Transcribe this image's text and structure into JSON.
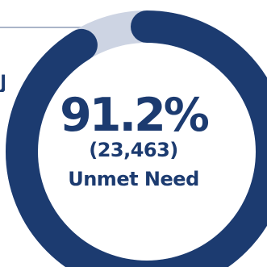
{
  "chart_data": {
    "type": "donut",
    "percent_label": "91.2%",
    "count_label": "(23,463)",
    "label": "Unmet Need",
    "segments": [
      {
        "value": 91.2,
        "color": "#1c3b70"
      },
      {
        "value": 8.8,
        "color": "#cdd4e3"
      }
    ]
  },
  "colors": {
    "primary": "#1c3b70",
    "secondary": "#cdd4e3",
    "leader": "#aab5c9"
  }
}
